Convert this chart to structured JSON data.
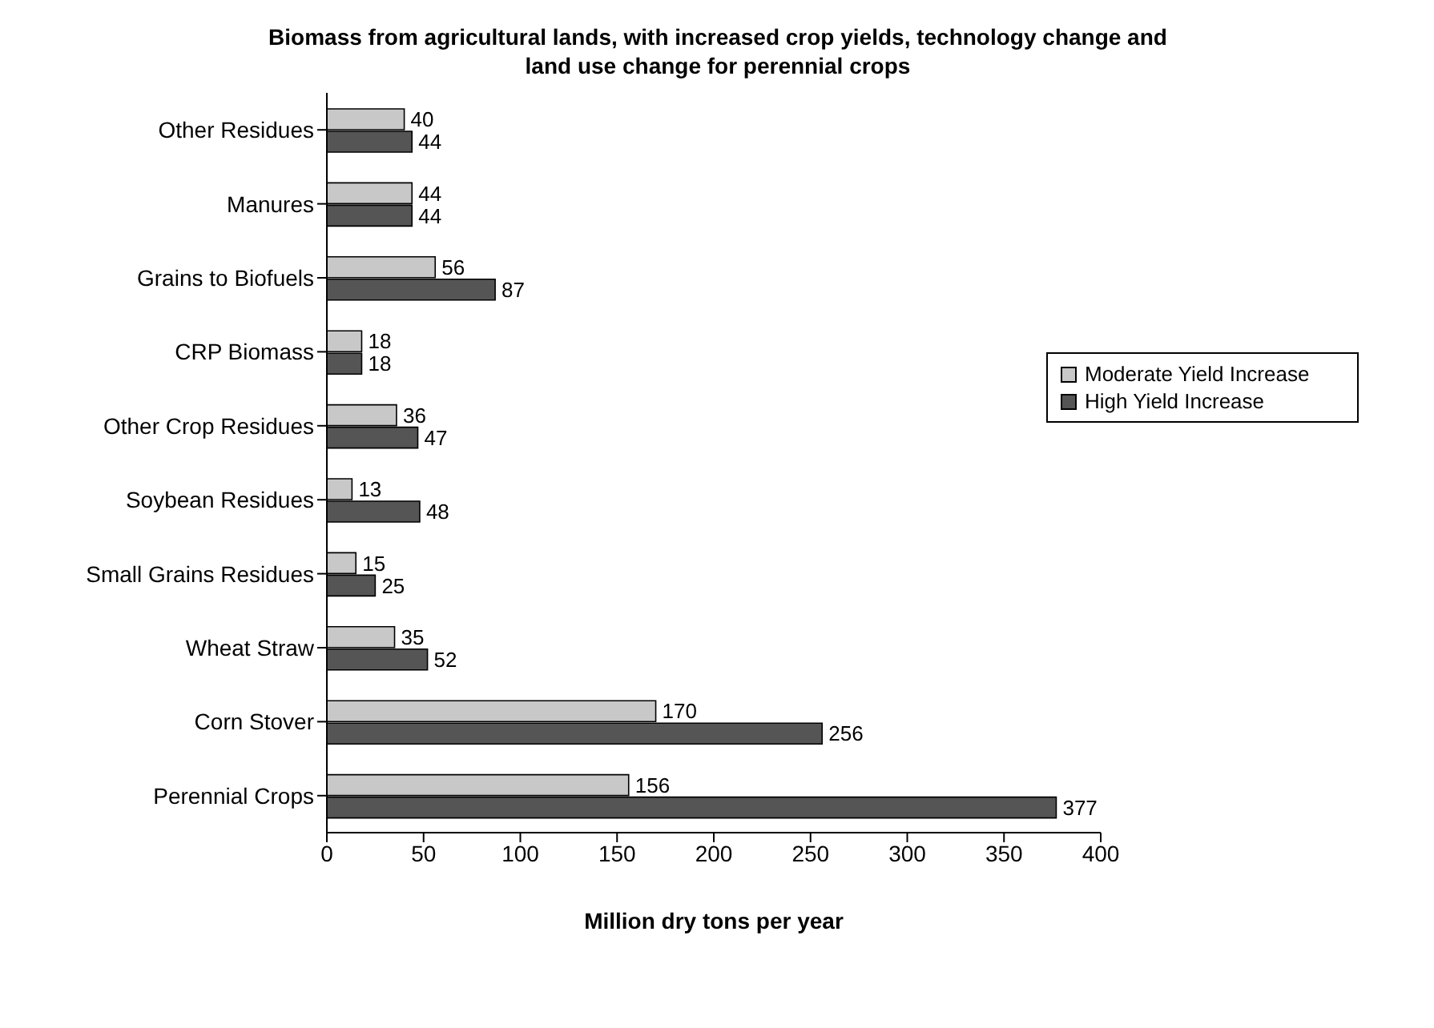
{
  "chart_data": {
    "type": "bar",
    "orientation": "horizontal",
    "title": "Biomass from agricultural lands, with increased crop yields, technology change and land use change for perennial crops",
    "xlabel": "Million dry tons per year",
    "categories": [
      "Other Residues",
      "Manures",
      "Grains to Biofuels",
      "CRP Biomass",
      "Other Crop Residues",
      "Soybean Residues",
      "Small Grains Residues",
      "Wheat Straw",
      "Corn Stover",
      "Perennial Crops"
    ],
    "series": [
      {
        "name": "Moderate Yield Increase",
        "color": "#c8c8c8",
        "values": [
          40,
          44,
          56,
          18,
          36,
          13,
          15,
          35,
          170,
          156
        ]
      },
      {
        "name": "High Yield Increase",
        "color": "#555555",
        "values": [
          44,
          44,
          87,
          18,
          47,
          48,
          25,
          52,
          256,
          377
        ]
      }
    ],
    "xlim": [
      0,
      400
    ],
    "xticks": [
      0,
      50,
      100,
      150,
      200,
      250,
      300,
      350,
      400
    ],
    "data_labels": true,
    "grid": false,
    "legend": "right"
  }
}
